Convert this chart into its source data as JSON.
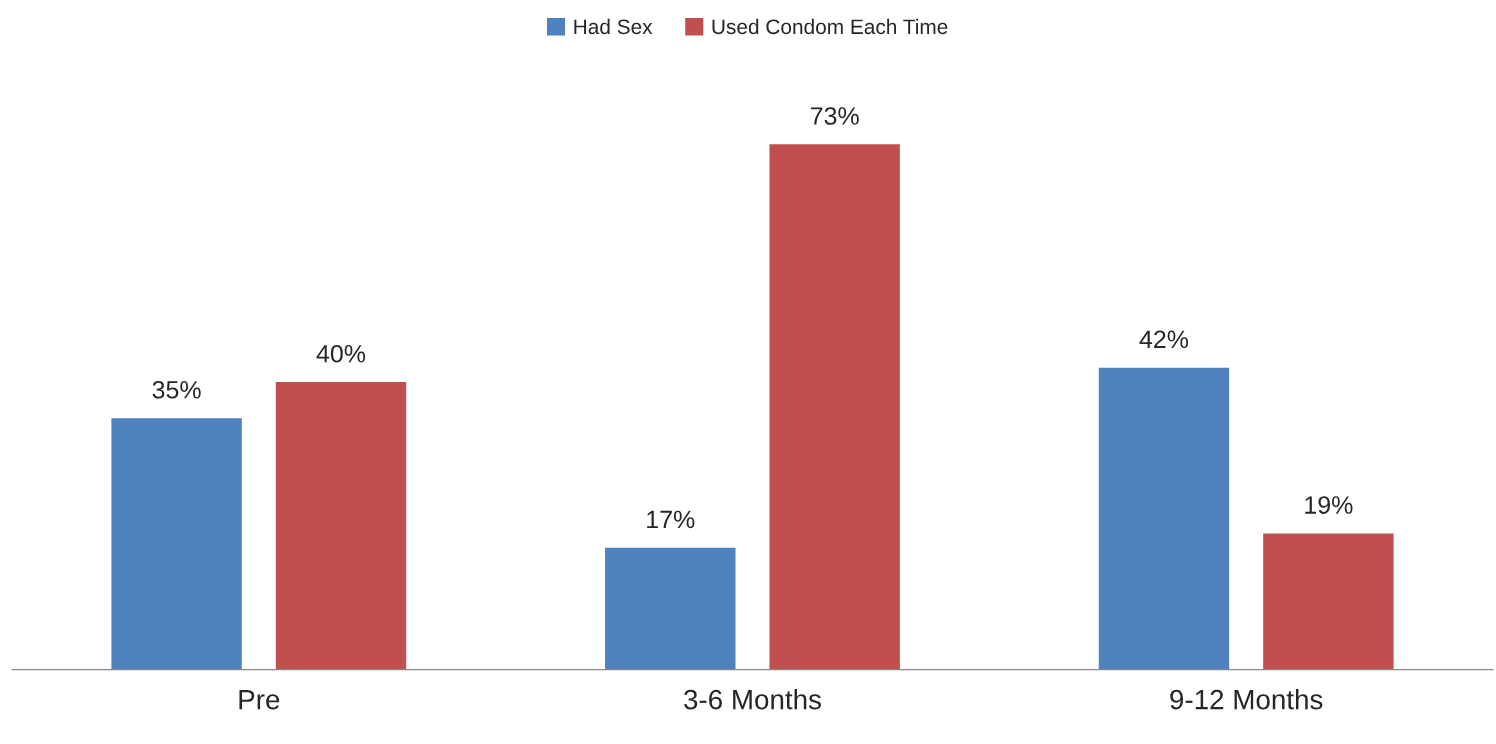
{
  "chart_data": {
    "type": "bar",
    "categories": [
      "Pre",
      "3-6 Months",
      "9-12 Months"
    ],
    "series": [
      {
        "name": "Had Sex",
        "color": "#4f81bd",
        "values": [
          35,
          17,
          42
        ],
        "value_labels": [
          "35%",
          "17%",
          "42%"
        ]
      },
      {
        "name": "Used Condom Each Time",
        "color": "#c0504d",
        "values": [
          40,
          73,
          19
        ],
        "value_labels": [
          "40%",
          "73%",
          "19%"
        ]
      }
    ],
    "legend": "top",
    "grid": false
  }
}
